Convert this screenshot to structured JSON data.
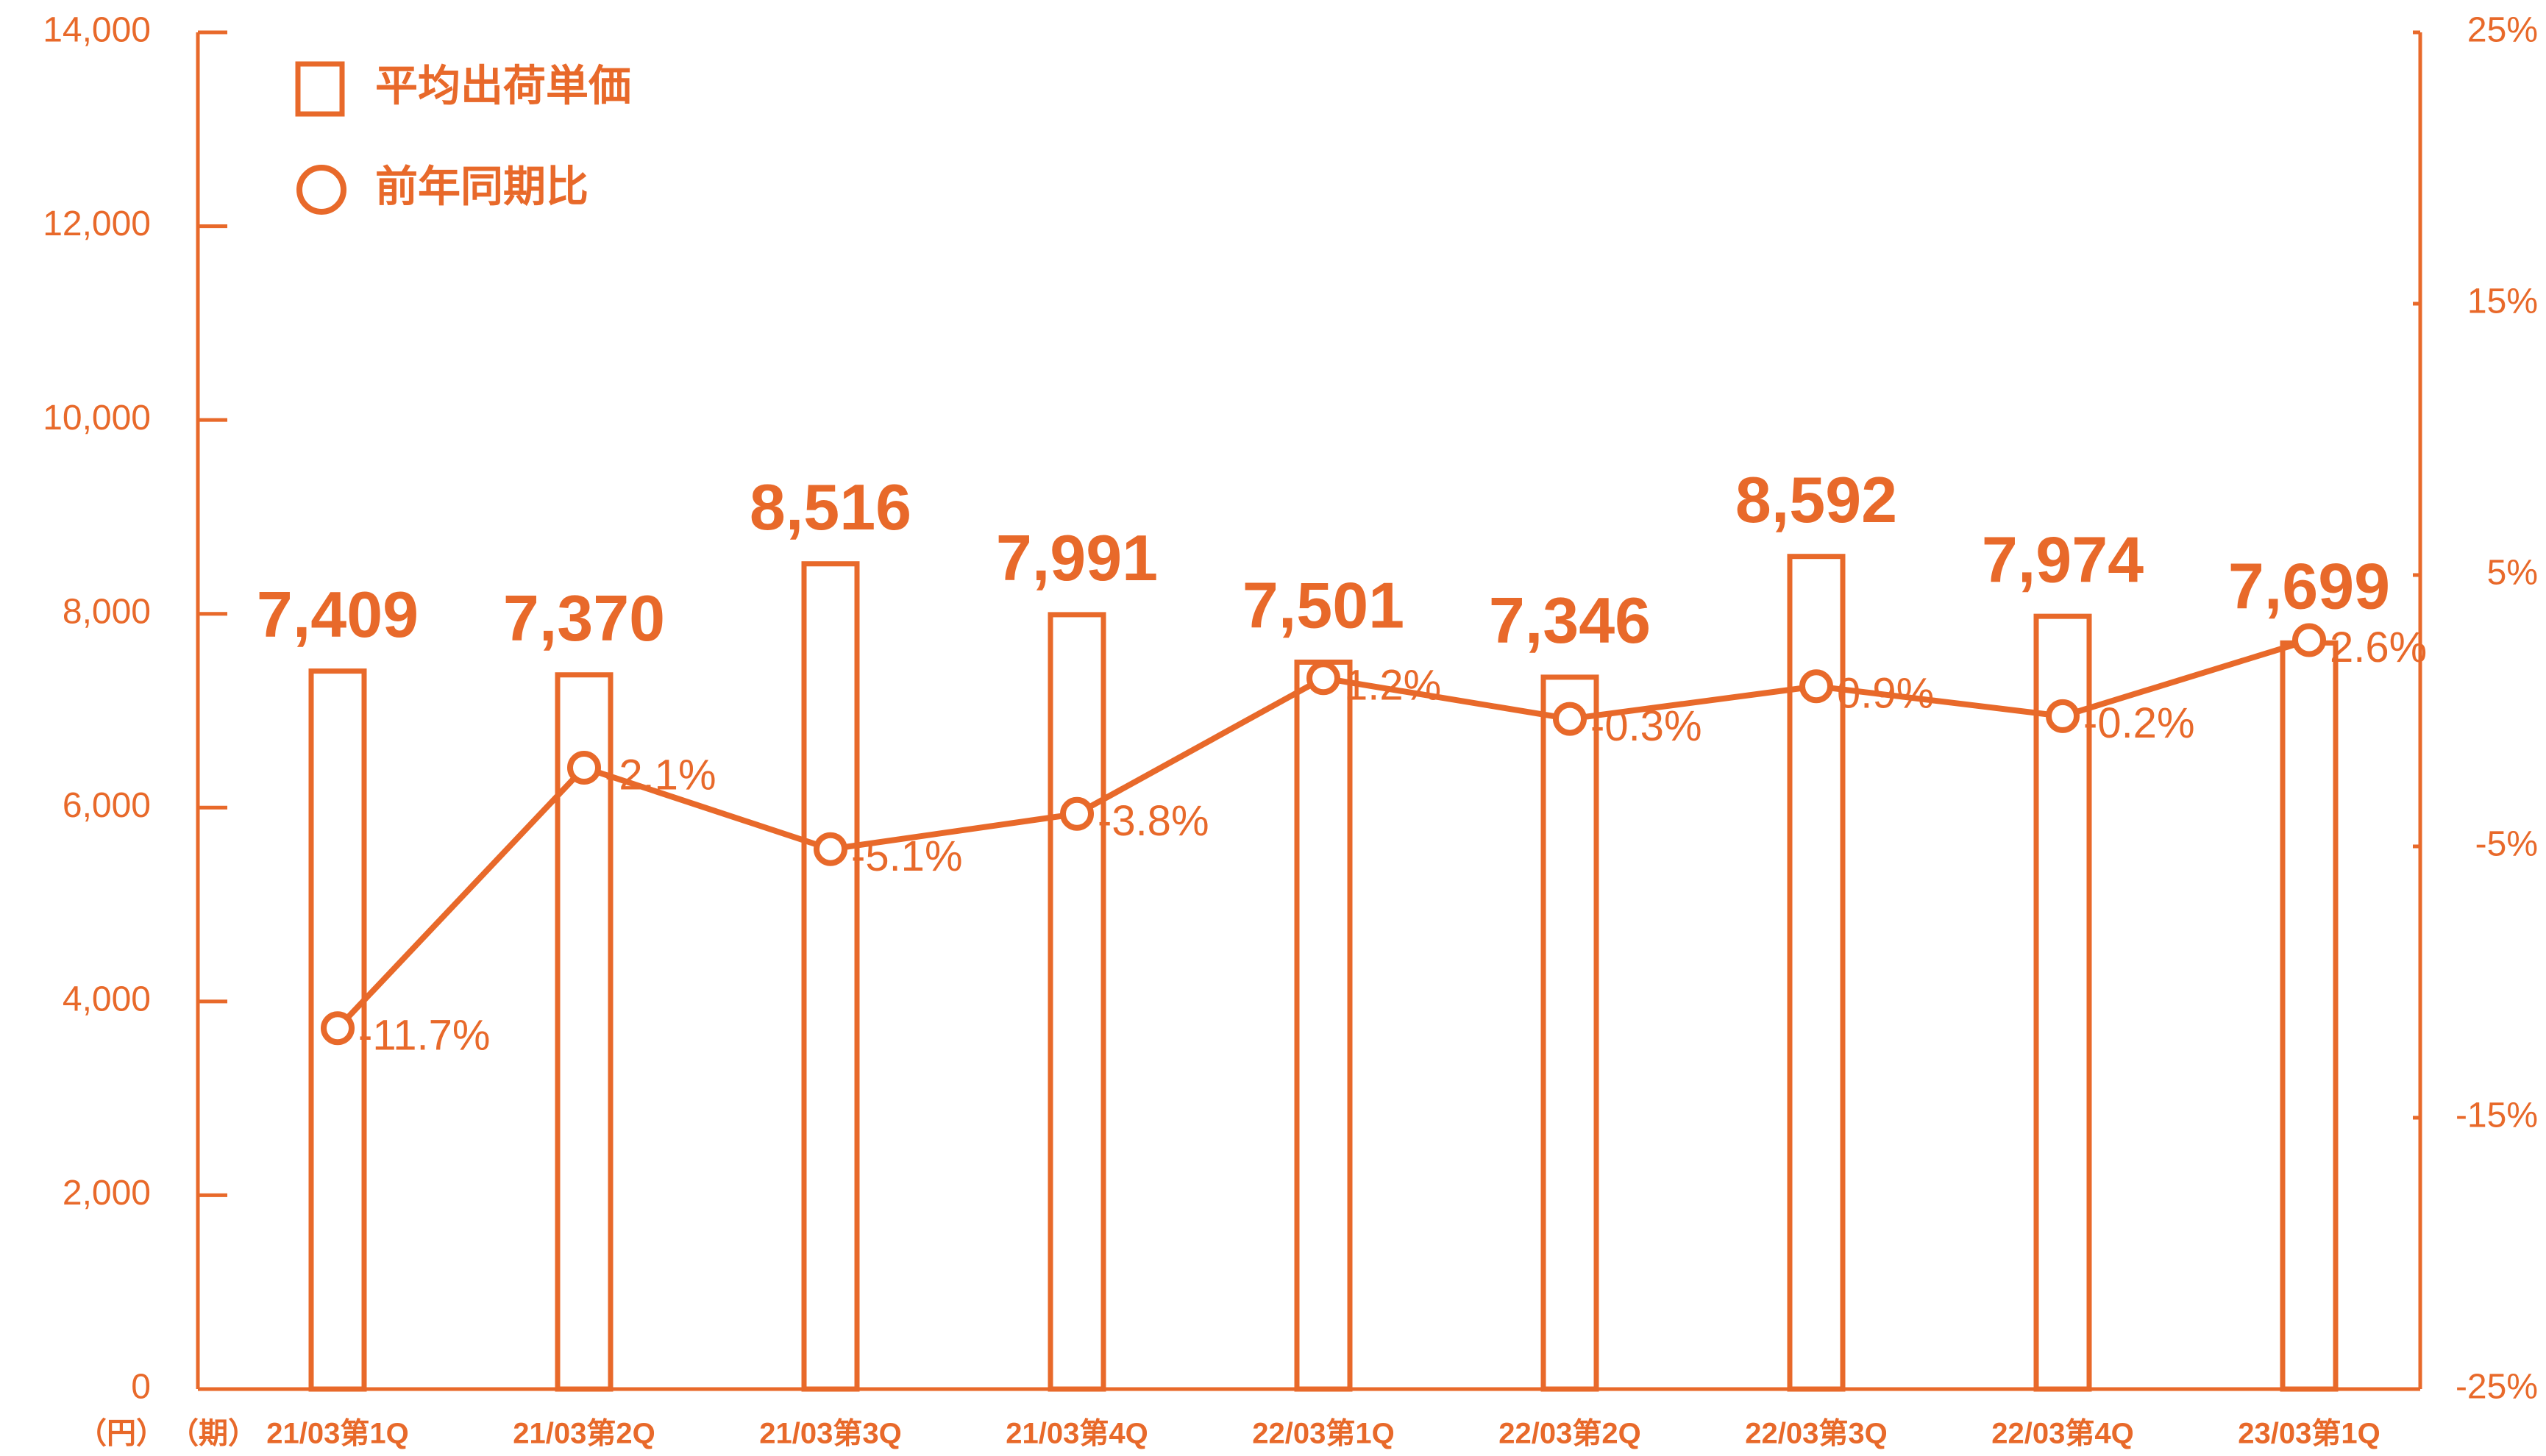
{
  "chart_data": {
    "type": "bar",
    "ylabel": "（円）",
    "xlabel": "（期）",
    "categories": [
      "21/03第1Q",
      "21/03第2Q",
      "21/03第3Q",
      "21/03第4Q",
      "22/03第1Q",
      "22/03第2Q",
      "22/03第3Q",
      "22/03第4Q",
      "23/03第1Q"
    ],
    "series": [
      {
        "name": "平均出荷単価",
        "type": "bar",
        "color": "#e8692a",
        "values": [
          7409,
          7370,
          8516,
          7991,
          7501,
          7346,
          8592,
          7974,
          7699
        ],
        "value_labels": [
          "7,409",
          "7,370",
          "8,516",
          "7,991",
          "7,501",
          "7,346",
          "8,592",
          "7,974",
          "7,699"
        ]
      },
      {
        "name": "前年同期比",
        "type": "line",
        "axis": "y2",
        "color": "#e8692a",
        "values": [
          -11.7,
          -2.1,
          -5.1,
          -3.8,
          1.2,
          -0.3,
          0.9,
          -0.2,
          2.6
        ],
        "value_labels": [
          "-11.7%",
          "-2.1%",
          "-5.1%",
          "-3.8%",
          "1.2%",
          "-0.3%",
          "0.9%",
          "-0.2%",
          "2.6%"
        ]
      }
    ],
    "ylim": [
      0,
      14000
    ],
    "yticks": [
      0,
      {
        "value": 2000,
        "label": "2,000"
      },
      {
        "value": 4000,
        "label": "4,000"
      },
      {
        "value": 6000,
        "label": "6,000"
      },
      {
        "value": 8000,
        "label": "8,000"
      },
      {
        "value": 10000,
        "label": "10,000"
      },
      {
        "value": 12000,
        "label": "12,000"
      },
      {
        "value": 14000,
        "label": "14,000"
      }
    ],
    "y2lim": [
      -25,
      25
    ],
    "y2ticks": [
      {
        "value": -25,
        "label": "-25%"
      },
      {
        "value": -15,
        "label": "-15%"
      },
      {
        "value": -5,
        "label": "-5%"
      },
      {
        "value": 5,
        "label": "5%"
      },
      {
        "value": 15,
        "label": "15%"
      },
      {
        "value": 25,
        "label": "25%"
      }
    ],
    "legend": "top-left"
  }
}
